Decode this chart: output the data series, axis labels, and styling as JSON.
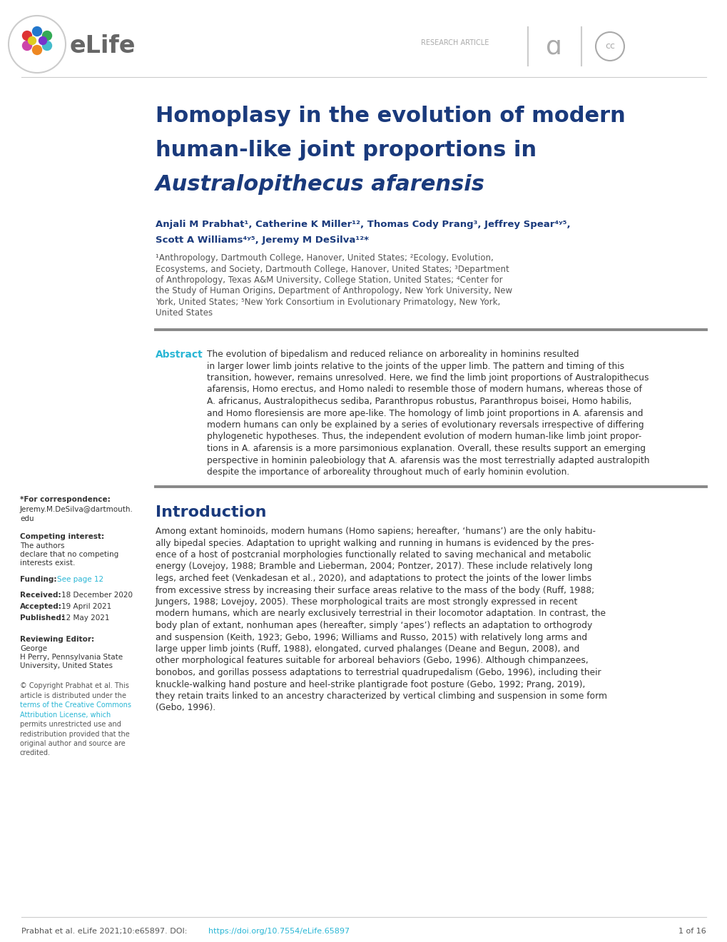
{
  "bg_color": "#ffffff",
  "title_line1": "Homoplasy in the evolution of modern",
  "title_line2": "human-like joint proportions in",
  "title_line3": "Australopithecus afarensis",
  "title_color": "#1a3a7c",
  "authors_line1": "Anjali M Prabhat¹, Catherine K Miller¹², Thomas Cody Prang³, Jeffrey Spear⁴ʸ⁵,",
  "authors_line2": "Scott A Williams⁴ʸ⁵, Jeremy M DeSilva¹²*",
  "authors_color": "#1a3a7c",
  "aff_lines": [
    "¹Anthropology, Dartmouth College, Hanover, United States; ²Ecology, Evolution,",
    "Ecosystems, and Society, Dartmouth College, Hanover, United States; ³Department",
    "of Anthropology, Texas A&M University, College Station, United States; ⁴Center for",
    "the Study of Human Origins, Department of Anthropology, New York University, New",
    "York, United States; ⁵New York Consortium in Evolutionary Primatology, New York,",
    "United States"
  ],
  "affiliations_color": "#555555",
  "abstract_label": "Abstract",
  "abstract_label_color": "#29b6d5",
  "abs_lines": [
    "The evolution of bipedalism and reduced reliance on arboreality in hominins resulted",
    "in larger lower limb joints relative to the joints of the upper limb. The pattern and timing of this",
    "transition, however, remains unresolved. Here, we find the limb joint proportions of Australopithecus",
    "afarensis, Homo erectus, and Homo naledi to resemble those of modern humans, whereas those of",
    "A. africanus, Australopithecus sediba, Paranthropus robustus, Paranthropus boisei, Homo habilis,",
    "and Homo floresiensis are more ape-like. The homology of limb joint proportions in A. afarensis and",
    "modern humans can only be explained by a series of evolutionary reversals irrespective of differing",
    "phylogenetic hypotheses. Thus, the independent evolution of modern human-like limb joint propor-",
    "tions in A. afarensis is a more parsimonious explanation. Overall, these results support an emerging",
    "perspective in hominin paleobiology that A. afarensis was the most terrestrially adapted australopith",
    "despite the importance of arboreality throughout much of early hominin evolution."
  ],
  "abstract_color": "#333333",
  "sidebar_funding_color": "#29b6d5",
  "sidebar_cc_color": "#29b6d5",
  "intro_title": "Introduction",
  "intro_title_color": "#1a3a7c",
  "intro_lines": [
    "Among extant hominoids, modern humans (Homo sapiens; hereafter, ‘humans’) are the only habitu-",
    "ally bipedal species. Adaptation to upright walking and running in humans is evidenced by the pres-",
    "ence of a host of postcranial morphologies functionally related to saving mechanical and metabolic",
    "energy (Lovejoy, 1988; Bramble and Lieberman, 2004; Pontzer, 2017). These include relatively long",
    "legs, arched feet (Venkadesan et al., 2020), and adaptations to protect the joints of the lower limbs",
    "from excessive stress by increasing their surface areas relative to the mass of the body (Ruff, 1988;",
    "Jungers, 1988; Lovejoy, 2005). These morphological traits are most strongly expressed in recent",
    "modern humans, which are nearly exclusively terrestrial in their locomotor adaptation. In contrast, the",
    "body plan of extant, nonhuman apes (hereafter, simply ‘apes’) reflects an adaptation to orthogrody",
    "and suspension (Keith, 1923; Gebo, 1996; Williams and Russo, 2015) with relatively long arms and",
    "large upper limb joints (Ruff, 1988), elongated, curved phalanges (Deane and Begun, 2008), and",
    "other morphological features suitable for arboreal behaviors (Gebo, 1996). Although chimpanzees,",
    "bonobos, and gorillas possess adaptations to terrestrial quadrupedalism (Gebo, 1996), including their",
    "knuckle-walking hand posture and heel-strike plantigrade foot posture (Gebo, 1992; Prang, 2019),",
    "they retain traits linked to an ancestry characterized by vertical climbing and suspension in some form",
    "(Gebo, 1996)."
  ],
  "intro_color": "#333333",
  "footer_doi_color": "#29b6d5",
  "footer_page": "1 of 16",
  "footer_color": "#555555",
  "copyright_lines": [
    "© Copyright Prabhat et al. This",
    "article is distributed under the",
    "terms of the Creative Commons",
    "Attribution License, which",
    "permits unrestricted use and",
    "redistribution provided that the",
    "original author and source are",
    "credited."
  ],
  "cc_color_lines": [
    2,
    3
  ]
}
